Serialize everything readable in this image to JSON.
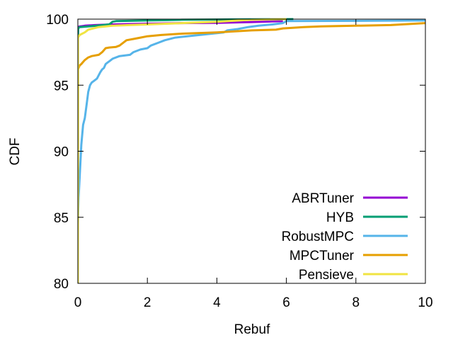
{
  "chart_data": {
    "type": "line",
    "title": "",
    "xlabel": "Rebuf",
    "ylabel": "CDF",
    "xlim": [
      0,
      10
    ],
    "ylim": [
      80,
      100
    ],
    "xticks": [
      "0",
      "2",
      "4",
      "6",
      "8",
      "10"
    ],
    "yticks": [
      "80",
      "85",
      "90",
      "95",
      "100"
    ],
    "grid": false,
    "legend_position": "bottom-right",
    "series": [
      {
        "name": "ABRTuner",
        "color": "#9400d3",
        "x": [
          0,
          0.01,
          0.05,
          0.2,
          0.5,
          1.0,
          2.0,
          3.0,
          4.0,
          5.0,
          5.9
        ],
        "y": [
          98.7,
          99.4,
          99.45,
          99.5,
          99.55,
          99.6,
          99.65,
          99.7,
          99.72,
          99.78,
          99.85
        ]
      },
      {
        "name": "HYB",
        "color": "#009e73",
        "x": [
          0,
          0.01,
          0.05,
          0.3,
          0.9,
          1.0,
          1.1,
          3.0,
          6.2
        ],
        "y": [
          98.5,
          99.3,
          99.4,
          99.45,
          99.6,
          99.8,
          99.85,
          99.95,
          100
        ]
      },
      {
        "name": "RobustMPC",
        "color": "#56b4e9",
        "x": [
          0,
          0.02,
          0.05,
          0.1,
          0.15,
          0.2,
          0.25,
          0.3,
          0.35,
          0.4,
          0.45,
          0.55,
          0.65,
          0.7,
          0.75,
          0.8,
          0.85,
          0.9,
          1.0,
          1.2,
          1.5,
          1.6,
          1.8,
          2.0,
          2.1,
          2.3,
          2.5,
          2.8,
          3.5,
          4.2,
          4.3,
          4.6,
          4.9,
          5.2,
          5.6,
          5.9,
          6.0,
          10.0
        ],
        "y": [
          84.5,
          86.5,
          88.0,
          90.5,
          92.0,
          92.5,
          93.5,
          94.5,
          95.0,
          95.2,
          95.3,
          95.5,
          96.0,
          96.2,
          96.3,
          96.6,
          96.7,
          96.8,
          97.0,
          97.2,
          97.3,
          97.5,
          97.7,
          97.8,
          98.0,
          98.2,
          98.4,
          98.6,
          98.8,
          99.0,
          99.15,
          99.25,
          99.4,
          99.5,
          99.6,
          99.7,
          99.85,
          99.9
        ]
      },
      {
        "name": "MPCTuner",
        "color": "#e69f00",
        "x": [
          0,
          0.005,
          0.05,
          0.1,
          0.2,
          0.3,
          0.4,
          0.6,
          0.7,
          0.8,
          0.9,
          1.1,
          1.2,
          1.3,
          1.4,
          1.6,
          1.8,
          2.0,
          2.4,
          3.0,
          4.0,
          5.0,
          5.7,
          5.9,
          6.5,
          7.0,
          8.0,
          9.0,
          10.0
        ],
        "y": [
          80.0,
          96.2,
          96.5,
          96.6,
          96.9,
          97.1,
          97.2,
          97.3,
          97.5,
          97.8,
          97.85,
          97.9,
          98.0,
          98.2,
          98.4,
          98.5,
          98.6,
          98.7,
          98.8,
          98.9,
          99.0,
          99.15,
          99.2,
          99.3,
          99.4,
          99.45,
          99.5,
          99.55,
          99.7
        ]
      },
      {
        "name": "Pensieve",
        "color": "#f0e442",
        "x": [
          0,
          0.005,
          0.05,
          0.2,
          0.3,
          0.6,
          1.0,
          2.0,
          3.0,
          4.0,
          5.0,
          6.0
        ],
        "y": [
          80.0,
          98.6,
          98.8,
          99.0,
          99.2,
          99.4,
          99.5,
          99.6,
          99.7,
          99.8,
          99.95,
          100
        ]
      }
    ]
  }
}
